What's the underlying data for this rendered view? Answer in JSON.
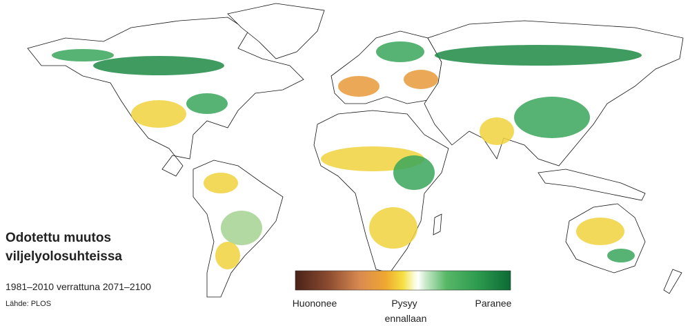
{
  "title": [
    "Odotettu muutos",
    "viljelyolosuhteissa"
  ],
  "subtitle": "1981–2010 verrattuna 2071–2100",
  "source": "Lähde: PLOS",
  "legend": {
    "labels": [
      "Huononee",
      "Pysyy",
      "Paranee"
    ],
    "sublabel": "ennallaan"
  }
}
